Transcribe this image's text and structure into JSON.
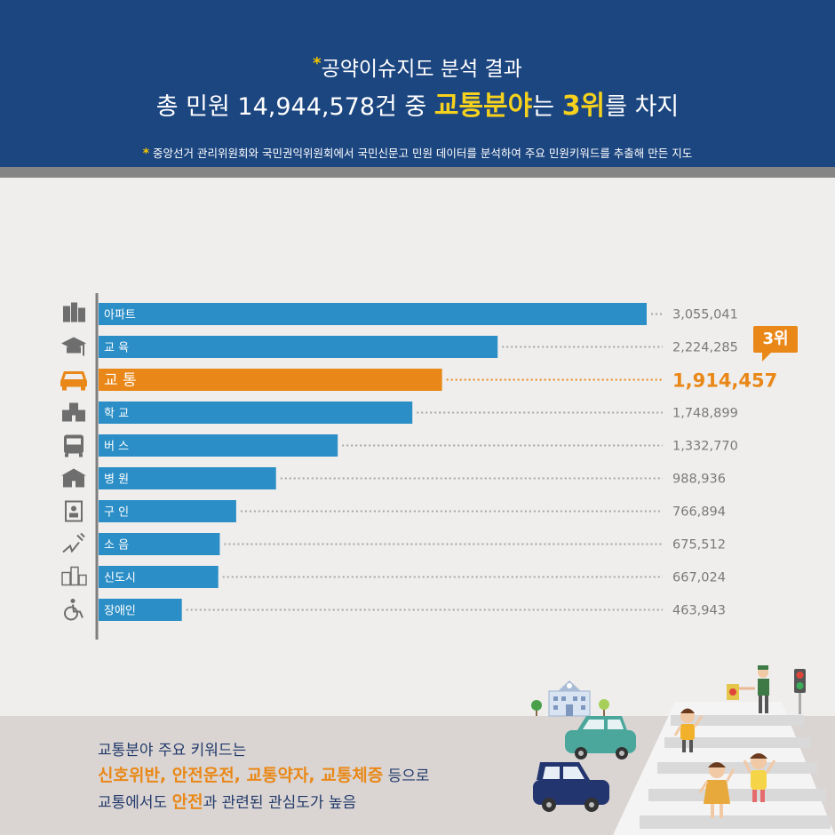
{
  "header": {
    "star": "*",
    "title_line1": "공약이슈지도 분석 결과",
    "line2_part1": "총 민원 14,944,578건 중 ",
    "line2_highlight1": "교통분야",
    "line2_part2": "는 ",
    "line2_highlight2": "3위",
    "line2_part3": "를 차지",
    "note": "중앙선거 관리위원회와 국민권익위원회에서 국민신문고 민원 데이터를 분석하여 주요 민원키워드를 추출해 만든 지도"
  },
  "rank_badge": "3위",
  "colors": {
    "bar": "#2b8ec6",
    "highlight": "#e98818",
    "header": "#1c4680",
    "text": "#7a7a7a"
  },
  "chart_data": {
    "type": "bar",
    "orientation": "horizontal",
    "categories": [
      "아파트",
      "교 육",
      "교 통",
      "학 교",
      "버 스",
      "병 원",
      "구 인",
      "소 음",
      "신도시",
      "장애인"
    ],
    "values": [
      3055041,
      2224285,
      1914457,
      1748899,
      1332770,
      988936,
      766894,
      675512,
      667024,
      463943
    ],
    "value_labels": [
      "3,055,041",
      "2,224,285",
      "1,914,457",
      "1,748,899",
      "1,332,770",
      "988,936",
      "766,894",
      "675,512",
      "667,024",
      "463,943"
    ],
    "icons": [
      "building-icon",
      "graduation-cap-icon",
      "car-icon",
      "school-icon",
      "bus-icon",
      "hospital-icon",
      "id-card-icon",
      "noise-icon",
      "city-icon",
      "wheelchair-icon"
    ],
    "highlight_index": 2,
    "xlim": [
      0,
      3300000
    ]
  },
  "footer": {
    "line1": "교통분야 주요 키워드는",
    "line2_keywords": "신호위반, 안전운전, 교통약자, 교통체증",
    "line2_suffix": " 등으로",
    "line3_prefix": "교통에서도 ",
    "line3_keyword": "안전",
    "line3_suffix": "과 관련된 관심도가 높음"
  }
}
